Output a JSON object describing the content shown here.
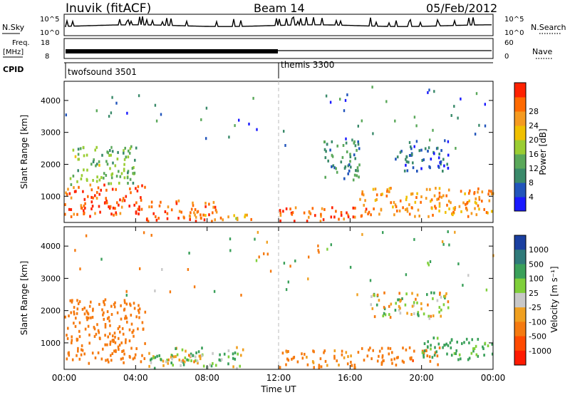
{
  "header": {
    "station": "Inuvik (fitACF)",
    "beam": "Beam 14",
    "date": "05/Feb/2012"
  },
  "strips": {
    "nsky": {
      "label": "N.Sky",
      "ticks": [
        "10^5",
        "10^0"
      ],
      "right_label": "N.Search",
      "right_ticks": [
        "10^5",
        "10^0"
      ]
    },
    "freq": {
      "label_line1": "Freq.",
      "label_line2": "[MHz]",
      "ticks": [
        "18",
        "8"
      ],
      "right_label": "Nave",
      "right_ticks": [
        "60",
        "0"
      ]
    },
    "cpid": {
      "label": "CPID",
      "modes": [
        {
          "name": "twofsound 3501",
          "start_hour": 0
        },
        {
          "name": "themis 3300",
          "start_hour": 12
        }
      ]
    }
  },
  "chart_data": [
    {
      "type": "heatmap",
      "panel": "power",
      "ylabel": "Slant Range [km]",
      "xlabel": "",
      "x_range_hours": [
        0,
        24
      ],
      "ylim": [
        180,
        4600
      ],
      "yticks": [
        1000,
        2000,
        3000,
        4000
      ],
      "colorbar": {
        "title": "Power [dB]",
        "ticks": [
          "4",
          "8",
          "12",
          "16",
          "20",
          "24",
          "28"
        ],
        "colors": [
          "#1a1aff",
          "#2255bb",
          "#3a8a6a",
          "#5aa85a",
          "#9acd32",
          "#f0c000",
          "#f59a20",
          "#ff6a00",
          "#ff2200"
        ]
      },
      "echo_regions": [
        {
          "t0": 0.0,
          "t1": 4.5,
          "r0": 400,
          "r1": 1400,
          "value": 28
        },
        {
          "t0": 0.3,
          "t1": 4.0,
          "r0": 1400,
          "r1": 2600,
          "value": 14
        },
        {
          "t0": 4.5,
          "t1": 8.5,
          "r0": 250,
          "r1": 900,
          "value": 27
        },
        {
          "t0": 7.5,
          "t1": 10.5,
          "r0": 250,
          "r1": 500,
          "value": 22
        },
        {
          "t0": 12.0,
          "t1": 16.5,
          "r0": 250,
          "r1": 700,
          "value": 28
        },
        {
          "t0": 14.5,
          "t1": 16.5,
          "r0": 1500,
          "r1": 2800,
          "value": 10
        },
        {
          "t0": 16.5,
          "t1": 24.0,
          "r0": 400,
          "r1": 1300,
          "value": 24
        },
        {
          "t0": 18.5,
          "t1": 21.5,
          "r0": 1800,
          "r1": 2600,
          "value": 6
        }
      ]
    },
    {
      "type": "heatmap",
      "panel": "velocity",
      "ylabel": "Slant Range [km]",
      "xlabel": "Time UT",
      "x_range_hours": [
        0,
        24
      ],
      "xticks": [
        "00:00",
        "04:00",
        "08:00",
        "12:00",
        "16:00",
        "20:00",
        "00:00"
      ],
      "ylim": [
        180,
        4600
      ],
      "yticks": [
        1000,
        2000,
        3000,
        4000
      ],
      "colorbar": {
        "title": "Velocity [m s⁻¹]",
        "ticks": [
          "1000",
          "500",
          "100",
          "25",
          "-25",
          "-100",
          "-500",
          "-1000"
        ],
        "colors": [
          "#1a3fa0",
          "#2f7a7a",
          "#3aa05a",
          "#7fcf3a",
          "#c8c8c8",
          "#f0a020",
          "#f57a10",
          "#ff4a00",
          "#ff1a00"
        ]
      },
      "echo_regions": [
        {
          "t0": 0.0,
          "t1": 4.5,
          "r0": 400,
          "r1": 2400,
          "value": -300
        },
        {
          "t0": 4.5,
          "t1": 10.0,
          "r0": 250,
          "r1": 900,
          "value": 60
        },
        {
          "t0": 5.5,
          "t1": 8.0,
          "r0": 400,
          "r1": 700,
          "value": 0
        },
        {
          "t0": 12.0,
          "t1": 16.5,
          "r0": 250,
          "r1": 800,
          "value": -200
        },
        {
          "t0": 16.5,
          "t1": 21.0,
          "r0": 350,
          "r1": 900,
          "value": -350
        },
        {
          "t0": 20.0,
          "t1": 24.0,
          "r0": 500,
          "r1": 1200,
          "value": 200
        },
        {
          "t0": 17.0,
          "t1": 21.5,
          "r0": 1800,
          "r1": 2600,
          "value": 0
        }
      ]
    }
  ]
}
